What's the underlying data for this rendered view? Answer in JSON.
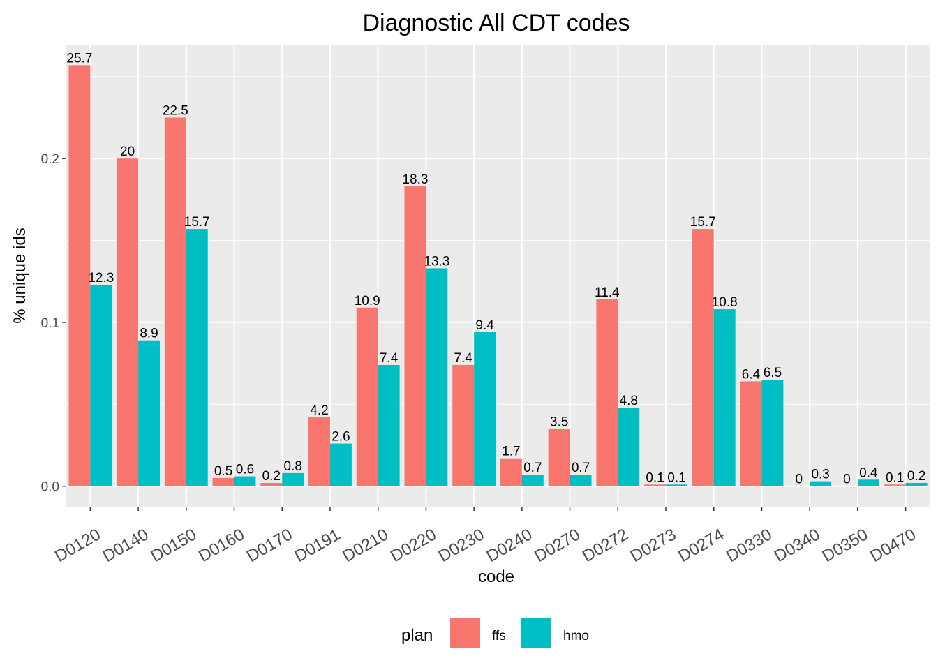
{
  "chart_data": {
    "type": "bar",
    "title": "Diagnostic All CDT codes",
    "xlabel": "code",
    "ylabel": "% unique ids",
    "ylim": [
      -0.0125,
      0.2695
    ],
    "yticks": [
      0.0,
      0.1,
      0.2
    ],
    "ytick_labels": [
      "0.0",
      "0.1",
      "0.2"
    ],
    "grid": true,
    "legend_position": "bottom",
    "legend_title": "plan",
    "categories": [
      "D0120",
      "D0140",
      "D0150",
      "D0160",
      "D0170",
      "D0191",
      "D0210",
      "D0220",
      "D0230",
      "D0240",
      "D0270",
      "D0272",
      "D0273",
      "D0274",
      "D0330",
      "D0340",
      "D0350",
      "D0470"
    ],
    "series": [
      {
        "name": "ffs",
        "color": "#F8766D",
        "values": [
          0.257,
          0.2,
          0.225,
          0.005,
          0.002,
          0.042,
          0.109,
          0.183,
          0.074,
          0.017,
          0.035,
          0.114,
          0.001,
          0.157,
          0.064,
          0.0,
          0.0,
          0.001
        ],
        "labels": [
          "25.7",
          "20",
          "22.5",
          "0.5",
          "0.2",
          "4.2",
          "10.9",
          "18.3",
          "7.4",
          "1.7",
          "3.5",
          "11.4",
          "0.1",
          "15.7",
          "6.4",
          "0",
          "0",
          "0.1"
        ]
      },
      {
        "name": "hmo",
        "color": "#00BFC4",
        "values": [
          0.123,
          0.089,
          0.157,
          0.006,
          0.008,
          0.026,
          0.074,
          0.133,
          0.094,
          0.007,
          0.007,
          0.048,
          0.001,
          0.108,
          0.065,
          0.003,
          0.004,
          0.002
        ],
        "labels": [
          "12.3",
          "8.9",
          "15.7",
          "0.6",
          "0.8",
          "2.6",
          "7.4",
          "13.3",
          "9.4",
          "0.7",
          "0.7",
          "4.8",
          "0.1",
          "10.8",
          "6.5",
          "0.3",
          "0.4",
          "0.2"
        ]
      }
    ]
  }
}
